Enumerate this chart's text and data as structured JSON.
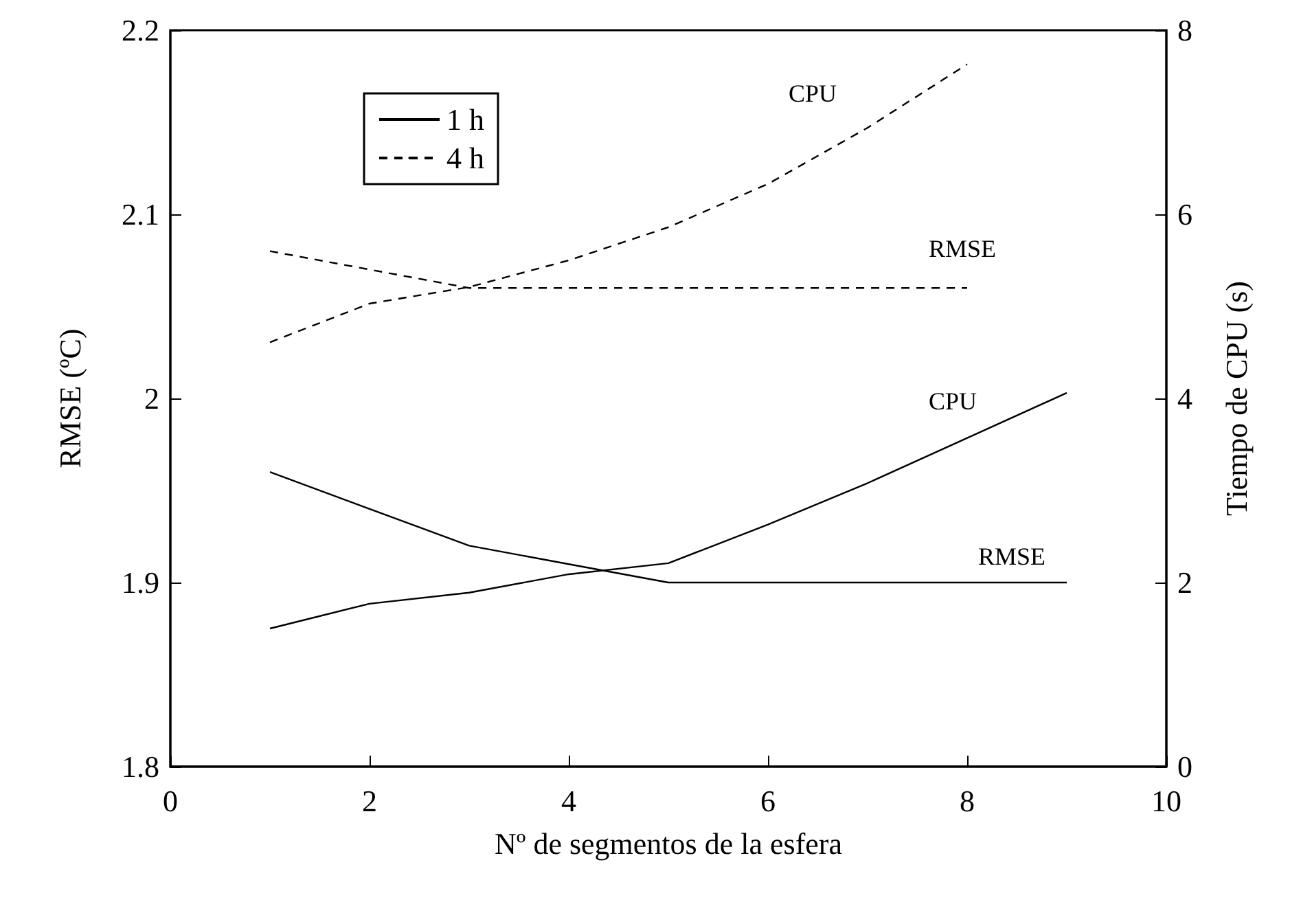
{
  "chart_data": {
    "type": "line",
    "xlabel": "Nº de segmentos de la esfera",
    "ylabel": "RMSE (ºC)",
    "y2label": "Tiempo de CPU (s)",
    "x": [
      1,
      2,
      3,
      4,
      5,
      6,
      7,
      8,
      9
    ],
    "series": [
      {
        "name": "1 h",
        "color": "#000000",
        "line_style": "solid",
        "values": [
          1.96,
          1.94,
          1.92,
          1.91,
          1.9,
          1.9,
          1.9,
          1.9,
          1.9
        ]
      },
      {
        "color": "#000000",
        "line_style": "solid",
        "axis": "y2",
        "values": [
          1.5,
          1.77,
          1.89,
          2.09,
          2.21,
          2.63,
          3.08,
          3.57,
          4.06
        ]
      },
      {
        "name": "4 h",
        "color": "#000000",
        "line_style": "dashed",
        "values": [
          2.08,
          2.07,
          2.06,
          2.06,
          2.06,
          2.06,
          2.06,
          2.06,
          null
        ]
      },
      {
        "color": "#000000",
        "line_style": "dashed",
        "axis": "y2",
        "values": [
          4.61,
          5.03,
          5.21,
          5.5,
          5.86,
          6.33,
          6.94,
          7.63,
          null
        ]
      }
    ],
    "xlim": [
      0,
      10
    ],
    "xticks": [
      0,
      2,
      4,
      6,
      8,
      10
    ],
    "ylim": [
      1.8,
      2.2
    ],
    "yticks": [
      1.8,
      1.9,
      {
        "value": 2.0,
        "label": "2"
      },
      2.1,
      2.2
    ],
    "y2lim": [
      0,
      8
    ],
    "y2ticks": [
      0,
      2,
      4,
      6,
      8
    ],
    "annotations": [
      "CPU",
      "RMSE",
      "CPU",
      "RMSE"
    ],
    "grid": false,
    "legend": "top left",
    "marker": "none"
  }
}
